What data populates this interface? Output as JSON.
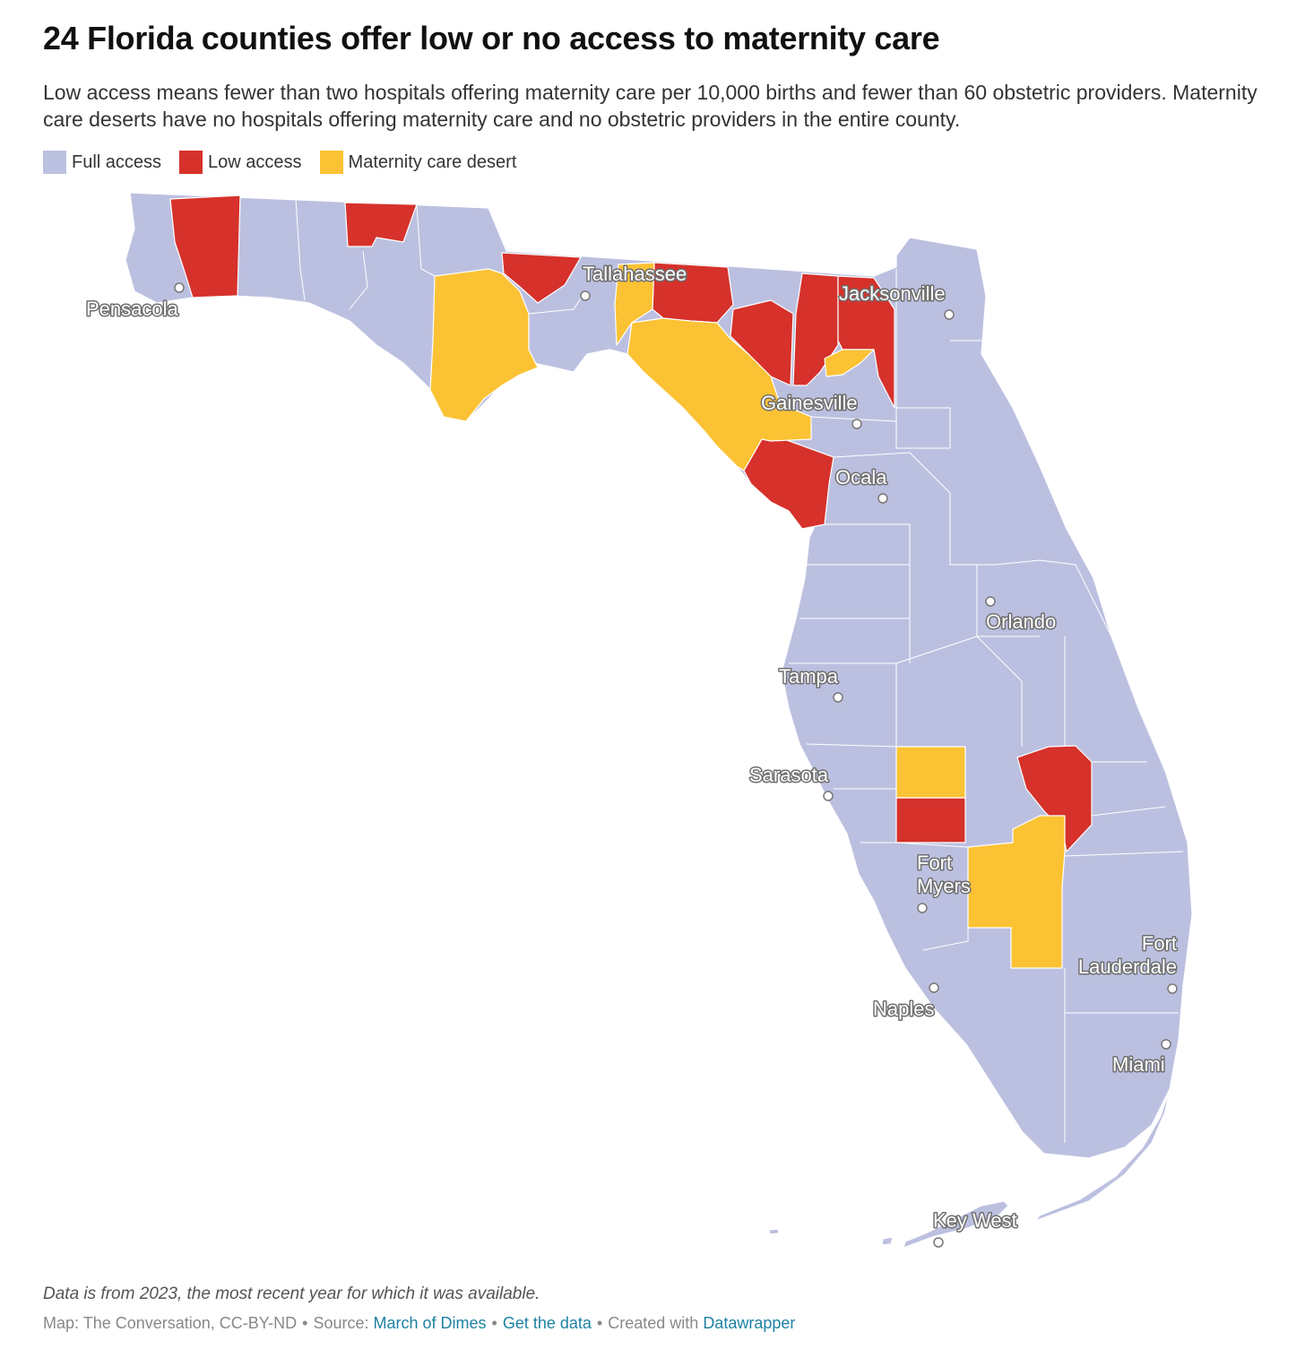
{
  "title": "24 Florida counties offer low or no access to maternity care",
  "subtitle": "Low access means fewer than two hospitals offering maternity care per 10,000 births and fewer than 60 obstetric providers. Maternity care deserts have no hospitals offering maternity care and no obstetric providers in the entire county.",
  "legend": [
    {
      "label": "Full access",
      "color": "#bcc0e0"
    },
    {
      "label": "Low access",
      "color": "#d6312b"
    },
    {
      "label": "Maternity care desert",
      "color": "#fbc234"
    }
  ],
  "cities": [
    {
      "name": "Pensacola",
      "lines": [
        "Pensacola"
      ]
    },
    {
      "name": "Tallahassee",
      "lines": [
        "Tallahassee"
      ]
    },
    {
      "name": "Jacksonville",
      "lines": [
        "Jacksonville"
      ]
    },
    {
      "name": "Gainesville",
      "lines": [
        "Gainesville"
      ]
    },
    {
      "name": "Ocala",
      "lines": [
        "Ocala"
      ]
    },
    {
      "name": "Orlando",
      "lines": [
        "Orlando"
      ]
    },
    {
      "name": "Tampa",
      "lines": [
        "Tampa"
      ]
    },
    {
      "name": "Sarasota",
      "lines": [
        "Sarasota"
      ]
    },
    {
      "name": "Fort Myers",
      "lines": [
        "Fort",
        "Myers"
      ]
    },
    {
      "name": "Fort Lauderdale",
      "lines": [
        "Fort",
        "Lauderdale"
      ]
    },
    {
      "name": "Naples",
      "lines": [
        "Naples"
      ]
    },
    {
      "name": "Miami",
      "lines": [
        "Miami"
      ]
    },
    {
      "name": "Key West",
      "lines": [
        "Key West"
      ]
    }
  ],
  "note": "Data is from 2023, the most recent year for which it was available.",
  "footer": {
    "credit": "Map: The Conversation, CC-BY-ND",
    "source_prefix": "Source:",
    "source_link": "March of Dimes",
    "data_link": "Get the data",
    "created_prefix": "Created with",
    "created_link": "Datawrapper"
  }
}
